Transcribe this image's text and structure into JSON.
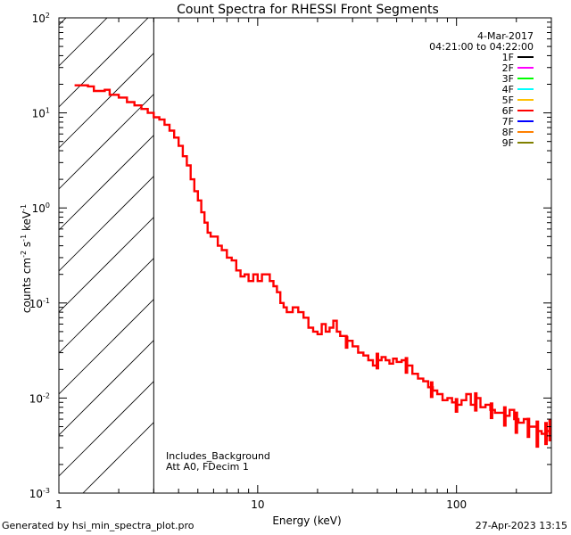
{
  "chart_data": {
    "type": "line",
    "title": "Count Spectra for RHESSI Front Segments",
    "xlabel": "Energy (keV)",
    "ylabel": {
      "base": "counts cm",
      "exp1": "-2",
      "mid1": " s",
      "exp2": "-1",
      "mid2": " keV",
      "exp3": "-1"
    },
    "x_scale": "log",
    "y_scale": "log",
    "xlim": [
      1,
      300
    ],
    "ylim": [
      0.001,
      100
    ],
    "x_ticks": [
      {
        "value": 1,
        "label": "1"
      },
      {
        "value": 10,
        "label": "10"
      },
      {
        "value": 100,
        "label": "100"
      }
    ],
    "y_ticks": [
      {
        "value": 0.001,
        "base": "10",
        "exp": "-3"
      },
      {
        "value": 0.01,
        "base": "10",
        "exp": "-2"
      },
      {
        "value": 0.1,
        "base": "10",
        "exp": "-1"
      },
      {
        "value": 1,
        "base": "10",
        "exp": "0"
      },
      {
        "value": 10,
        "base": "10",
        "exp": "1"
      },
      {
        "value": 100,
        "base": "10",
        "exp": "2"
      }
    ],
    "excluded_region": {
      "from": 1,
      "to": 3
    },
    "date": "4-Mar-2017",
    "time_range": "04:21:00 to 04:22:00",
    "legend": [
      {
        "label": "1F",
        "color": "#000000"
      },
      {
        "label": "2F",
        "color": "#ff00ff"
      },
      {
        "label": "3F",
        "color": "#00ff00"
      },
      {
        "label": "4F",
        "color": "#00ffff"
      },
      {
        "label": "5F",
        "color": "#ffc000"
      },
      {
        "label": "6F",
        "color": "#ff0000"
      },
      {
        "label": "7F",
        "color": "#0000ff"
      },
      {
        "label": "8F",
        "color": "#ff8000"
      },
      {
        "label": "9F",
        "color": "#808000"
      }
    ],
    "annotations": [
      "Includes_Background",
      "Att A0, FDecim 1"
    ],
    "series": [
      {
        "name": "6F",
        "color": "#ff0000",
        "points": [
          [
            1.2,
            19.5
          ],
          [
            1.4,
            19.0
          ],
          [
            1.5,
            17.0
          ],
          [
            1.7,
            17.5
          ],
          [
            1.8,
            15.5
          ],
          [
            2.0,
            14.5
          ],
          [
            2.2,
            13.0
          ],
          [
            2.4,
            12.0
          ],
          [
            2.6,
            11.0
          ],
          [
            2.8,
            10.0
          ],
          [
            3.0,
            9.0
          ],
          [
            3.2,
            8.5
          ],
          [
            3.4,
            7.5
          ],
          [
            3.6,
            6.5
          ],
          [
            3.8,
            5.5
          ],
          [
            4.0,
            4.5
          ],
          [
            4.2,
            3.5
          ],
          [
            4.4,
            2.8
          ],
          [
            4.6,
            2.0
          ],
          [
            4.8,
            1.5
          ],
          [
            5.0,
            1.2
          ],
          [
            5.2,
            0.9
          ],
          [
            5.4,
            0.7
          ],
          [
            5.6,
            0.55
          ],
          [
            5.8,
            0.5
          ],
          [
            6.0,
            0.5
          ],
          [
            6.3,
            0.4
          ],
          [
            6.6,
            0.36
          ],
          [
            7.0,
            0.3
          ],
          [
            7.4,
            0.28
          ],
          [
            7.8,
            0.22
          ],
          [
            8.2,
            0.19
          ],
          [
            8.6,
            0.2
          ],
          [
            9.0,
            0.17
          ],
          [
            9.5,
            0.2
          ],
          [
            10.0,
            0.17
          ],
          [
            10.5,
            0.2
          ],
          [
            11.0,
            0.2
          ],
          [
            11.5,
            0.17
          ],
          [
            12.0,
            0.15
          ],
          [
            12.5,
            0.13
          ],
          [
            13.0,
            0.1
          ],
          [
            13.5,
            0.09
          ],
          [
            14.0,
            0.08
          ],
          [
            15.0,
            0.09
          ],
          [
            16.0,
            0.08
          ],
          [
            17.0,
            0.07
          ],
          [
            18.0,
            0.055
          ],
          [
            19.0,
            0.05
          ],
          [
            20.0,
            0.047
          ],
          [
            21.0,
            0.06
          ],
          [
            22.0,
            0.05
          ],
          [
            23.0,
            0.055
          ],
          [
            24.0,
            0.065
          ],
          [
            25.0,
            0.05
          ],
          [
            26.0,
            0.045
          ],
          [
            28.0,
            0.04
          ],
          [
            30.0,
            0.035
          ],
          [
            32.0,
            0.03
          ],
          [
            34.0,
            0.028
          ],
          [
            36.0,
            0.025
          ],
          [
            38.0,
            0.022
          ],
          [
            40.0,
            0.025
          ],
          [
            42.0,
            0.027
          ],
          [
            44.0,
            0.025
          ],
          [
            46.0,
            0.023
          ],
          [
            48.0,
            0.026
          ],
          [
            50.0,
            0.024
          ],
          [
            53.0,
            0.025
          ],
          [
            56.0,
            0.022
          ],
          [
            60.0,
            0.018
          ],
          [
            64.0,
            0.016
          ],
          [
            68.0,
            0.015
          ],
          [
            72.0,
            0.013
          ],
          [
            76.0,
            0.012
          ],
          [
            80.0,
            0.011
          ],
          [
            85.0,
            0.0095
          ],
          [
            90.0,
            0.01
          ],
          [
            95.0,
            0.009
          ],
          [
            100.0,
            0.0085
          ],
          [
            106.0,
            0.0095
          ],
          [
            112.0,
            0.011
          ],
          [
            118.0,
            0.0085
          ],
          [
            125.0,
            0.01
          ],
          [
            132.0,
            0.008
          ],
          [
            140.0,
            0.0085
          ],
          [
            148.0,
            0.0075
          ],
          [
            156.0,
            0.007
          ],
          [
            165.0,
            0.007
          ],
          [
            175.0,
            0.0065
          ],
          [
            185.0,
            0.0075
          ],
          [
            195.0,
            0.006
          ],
          [
            205.0,
            0.0055
          ],
          [
            218.0,
            0.006
          ],
          [
            230.0,
            0.005
          ],
          [
            242.0,
            0.005
          ],
          [
            255.0,
            0.0045
          ],
          [
            268.0,
            0.0042
          ],
          [
            282.0,
            0.0045
          ],
          [
            296.0,
            0.0048
          ]
        ],
        "error_bars": [
          [
            28.0,
            0.033,
            0.045
          ],
          [
            40.0,
            0.02,
            0.03
          ],
          [
            56.0,
            0.018,
            0.027
          ],
          [
            75.0,
            0.01,
            0.015
          ],
          [
            100.0,
            0.007,
            0.01
          ],
          [
            125.0,
            0.0072,
            0.0115
          ],
          [
            150.0,
            0.006,
            0.009
          ],
          [
            175.0,
            0.005,
            0.0082
          ],
          [
            200.0,
            0.0042,
            0.0072
          ],
          [
            230.0,
            0.0038,
            0.0062
          ],
          [
            255.0,
            0.003,
            0.0058
          ],
          [
            282.0,
            0.0032,
            0.0056
          ],
          [
            296.0,
            0.0035,
            0.006
          ]
        ]
      }
    ]
  },
  "footer": {
    "generated_by": "Generated by hsi_min_spectra_plot.pro",
    "timestamp": "27-Apr-2023 13:15"
  }
}
